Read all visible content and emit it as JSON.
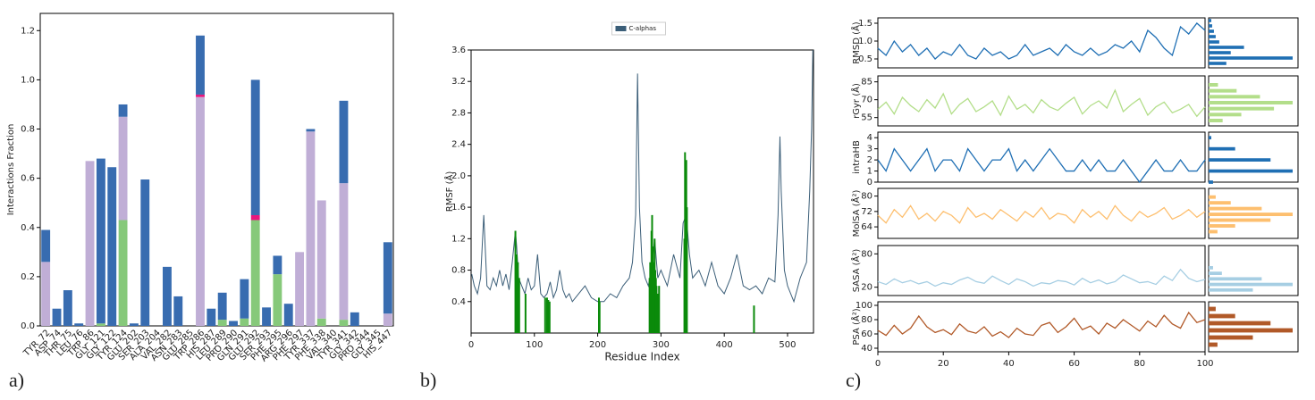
{
  "panel_labels": [
    "a)",
    "b)",
    "c)"
  ],
  "chart_data": [
    {
      "type": "bar",
      "y_label": "Interactions Fraction",
      "categories": [
        "TYR_72",
        "ASP_74",
        "THR_75",
        "LEU_76",
        "TRP_86",
        "GLY_121",
        "GLY_122",
        "TYR_124",
        "GLU_202",
        "SER_203",
        "ALA_204",
        "VAL_282",
        "ASN_283",
        "GLU_285",
        "TRP_286",
        "HIS_287",
        "LEU_289",
        "PRO_290",
        "GLN_291",
        "GLU_292",
        "SER_293",
        "PHE_295",
        "ARG_296",
        "PHE_297",
        "TYR_337",
        "PHE_338",
        "VAL_340",
        "TYR_341",
        "GLY_342",
        "PRO_344",
        "GLY_345",
        "HIS_447"
      ],
      "series": [
        {
          "color": "#86c97a",
          "values": [
            0,
            0,
            0,
            0,
            0,
            0.01,
            0,
            0.43,
            0,
            0,
            0,
            0,
            0,
            0,
            0,
            0,
            0.025,
            0,
            0.03,
            0.43,
            0,
            0.21,
            0,
            0,
            0,
            0.03,
            0,
            0.025,
            0,
            0,
            0,
            0
          ]
        },
        {
          "color": "#c0aed6",
          "values": [
            0.26,
            0,
            0,
            0,
            0.67,
            0,
            0,
            0.42,
            0,
            0,
            0,
            0,
            0,
            0,
            0.93,
            0,
            0,
            0,
            0,
            0,
            0,
            0,
            0,
            0.3,
            0.79,
            0.48,
            0,
            0.555,
            0,
            0,
            0,
            0.05
          ]
        },
        {
          "color": "#e8177d",
          "values": [
            0,
            0,
            0,
            0,
            0,
            0,
            0,
            0,
            0,
            0,
            0,
            0,
            0,
            0,
            0.01,
            0,
            0,
            0,
            0,
            0.02,
            0,
            0,
            0,
            0,
            0,
            0,
            0,
            0,
            0,
            0,
            0,
            0
          ]
        },
        {
          "color": "#386cb0",
          "values": [
            0.13,
            0.07,
            0.145,
            0.01,
            0,
            0.67,
            0.645,
            0.05,
            0.01,
            0.595,
            0,
            0.24,
            0.12,
            0,
            0.24,
            0.07,
            0.11,
            0.02,
            0.16,
            0.55,
            0.075,
            0.075,
            0.09,
            0,
            0.01,
            0,
            0,
            0.335,
            0.055,
            0,
            0,
            0.29
          ]
        }
      ],
      "ylim": [
        0,
        1.27
      ],
      "yticks": [
        {
          "value": 0,
          "label": "0.0"
        },
        0.2,
        0.4,
        0.6,
        0.8,
        {
          "value": 1,
          "label": "1.0"
        },
        1.2
      ]
    },
    {
      "type": "line",
      "x_label": "Residue Index",
      "y_label": "RMSF (Å)",
      "series": [
        {
          "name": "C-alphas",
          "color": "#3b5e78",
          "x": [
            1,
            5,
            10,
            15,
            20,
            25,
            30,
            35,
            40,
            45,
            50,
            55,
            60,
            65,
            70,
            72,
            75,
            80,
            85,
            90,
            95,
            100,
            105,
            110,
            115,
            120,
            125,
            130,
            135,
            140,
            145,
            150,
            155,
            160,
            170,
            180,
            190,
            200,
            210,
            220,
            230,
            240,
            250,
            255,
            260,
            263,
            266,
            270,
            275,
            280,
            285,
            290,
            295,
            300,
            310,
            320,
            330,
            335,
            340,
            345,
            350,
            360,
            370,
            380,
            390,
            400,
            410,
            420,
            430,
            440,
            450,
            460,
            470,
            480,
            485,
            488,
            490,
            495,
            500,
            510,
            520,
            530,
            535,
            538,
            540
          ],
          "values": [
            0.75,
            0.6,
            0.5,
            0.7,
            1.5,
            0.6,
            0.55,
            0.7,
            0.6,
            0.8,
            0.6,
            0.75,
            0.55,
            0.9,
            1.3,
            1.1,
            0.7,
            0.6,
            0.5,
            0.7,
            0.55,
            0.6,
            1.0,
            0.5,
            0.45,
            0.5,
            0.65,
            0.45,
            0.55,
            0.8,
            0.55,
            0.45,
            0.5,
            0.4,
            0.5,
            0.6,
            0.45,
            0.4,
            0.4,
            0.5,
            0.45,
            0.6,
            0.7,
            0.9,
            1.5,
            3.3,
            1.6,
            0.9,
            0.7,
            0.6,
            0.8,
            1.2,
            0.7,
            0.8,
            0.6,
            1.0,
            0.7,
            1.4,
            1.5,
            1.0,
            0.7,
            0.8,
            0.6,
            0.9,
            0.6,
            0.5,
            0.7,
            1.0,
            0.6,
            0.55,
            0.6,
            0.5,
            0.7,
            0.65,
            1.5,
            2.5,
            1.8,
            0.8,
            0.6,
            0.4,
            0.7,
            0.9,
            1.8,
            2.6,
            3.6
          ]
        },
        {
          "type": "bar",
          "color": "#0a8a0a",
          "x": [
            70,
            72,
            74,
            76,
            86,
            117,
            120,
            122,
            124,
            202,
            203,
            282,
            283,
            285,
            286,
            287,
            289,
            290,
            291,
            292,
            293,
            295,
            297,
            337,
            338,
            340,
            341,
            447
          ],
          "values": [
            1.3,
            1.0,
            0.9,
            0.7,
            0.5,
            0.45,
            0.45,
            0.42,
            0.4,
            0.45,
            0.4,
            0.7,
            0.9,
            1.3,
            1.5,
            1.1,
            0.9,
            1.2,
            0.8,
            0.7,
            0.6,
            0.5,
            0.6,
            1.2,
            2.3,
            2.2,
            1.6,
            0.35
          ]
        }
      ],
      "xlim": [
        0,
        541
      ],
      "xticks": [
        0,
        100,
        200,
        300,
        400,
        500
      ],
      "ylim": [
        0,
        3.6
      ],
      "yticks": [
        0.4,
        0.8,
        1.2,
        1.6,
        {
          "value": 2,
          "label": "2.0"
        },
        2.4,
        2.8,
        3.2,
        3.6
      ],
      "legend": "top-center"
    },
    {
      "type": "line",
      "y_label": "RMSD (Å)",
      "color": "#1f6fb4",
      "x": [
        0,
        2.5,
        5,
        7.5,
        10,
        12.5,
        15,
        17.5,
        20,
        22.5,
        25,
        27.5,
        30,
        32.5,
        35,
        37.5,
        40,
        42.5,
        45,
        47.5,
        50,
        52.5,
        55,
        57.5,
        60,
        62.5,
        65,
        67.5,
        70,
        72.5,
        75,
        77.5,
        80,
        82.5,
        85,
        87.5,
        90,
        92.5,
        95,
        97.5,
        100
      ],
      "values": [
        0.8,
        0.6,
        1.0,
        0.7,
        0.9,
        0.6,
        0.8,
        0.5,
        0.7,
        0.6,
        0.9,
        0.6,
        0.5,
        0.8,
        0.6,
        0.7,
        0.5,
        0.6,
        0.9,
        0.6,
        0.7,
        0.8,
        0.6,
        0.9,
        0.7,
        0.6,
        0.8,
        0.6,
        0.7,
        0.9,
        0.8,
        1.0,
        0.7,
        1.3,
        1.1,
        0.8,
        0.6,
        1.4,
        1.2,
        1.5,
        1.3
      ],
      "xlim": [
        0,
        100
      ],
      "ylim": [
        0.25,
        1.65
      ],
      "yticks": [
        0.5,
        {
          "value": 1,
          "label": "1.0"
        },
        1.5
      ],
      "hist": {
        "bins": [
          0.3,
          0.45,
          0.6,
          0.75,
          0.9,
          1.05,
          1.2,
          1.35,
          1.5,
          1.65
        ],
        "counts": [
          20,
          95,
          25,
          40,
          12,
          8,
          6,
          4,
          3
        ]
      }
    },
    {
      "type": "line",
      "y_label": "rGyr (Å)",
      "color": "#b3de8a",
      "x": [
        0,
        2.5,
        5,
        7.5,
        10,
        12.5,
        15,
        17.5,
        20,
        22.5,
        25,
        27.5,
        30,
        32.5,
        35,
        37.5,
        40,
        42.5,
        45,
        47.5,
        50,
        52.5,
        55,
        57.5,
        60,
        62.5,
        65,
        67.5,
        70,
        72.5,
        75,
        77.5,
        80,
        82.5,
        85,
        87.5,
        90,
        92.5,
        95,
        97.5,
        100
      ],
      "values": [
        62,
        68,
        58,
        72,
        65,
        60,
        70,
        63,
        75,
        58,
        66,
        71,
        60,
        64,
        69,
        57,
        73,
        62,
        66,
        59,
        70,
        64,
        61,
        67,
        72,
        58,
        65,
        69,
        63,
        78,
        60,
        66,
        71,
        57,
        64,
        68,
        59,
        62,
        66,
        56,
        64
      ],
      "xlim": [
        0,
        100
      ],
      "ylim": [
        48,
        90
      ],
      "yticks": [
        55,
        70,
        85
      ],
      "hist": {
        "bins": [
          50,
          55,
          60,
          65,
          70,
          75,
          80,
          85
        ],
        "counts": [
          15,
          35,
          70,
          90,
          55,
          30,
          10
        ]
      }
    },
    {
      "type": "line",
      "y_label": "intraHB",
      "color": "#1f6fb4",
      "x": [
        0,
        2.5,
        5,
        7.5,
        10,
        12.5,
        15,
        17.5,
        20,
        22.5,
        25,
        27.5,
        30,
        32.5,
        35,
        37.5,
        40,
        42.5,
        45,
        47.5,
        50,
        52.5,
        55,
        57.5,
        60,
        62.5,
        65,
        67.5,
        70,
        72.5,
        75,
        77.5,
        80,
        82.5,
        85,
        87.5,
        90,
        92.5,
        95,
        97.5,
        100
      ],
      "values": [
        2,
        1,
        3,
        2,
        1,
        2,
        3,
        1,
        2,
        2,
        1,
        3,
        2,
        1,
        2,
        2,
        3,
        1,
        2,
        1,
        2,
        3,
        2,
        1,
        1,
        2,
        1,
        2,
        1,
        1,
        2,
        1,
        0,
        1,
        2,
        1,
        1,
        2,
        1,
        1,
        2
      ],
      "xlim": [
        0,
        100
      ],
      "ylim": [
        0,
        4.5
      ],
      "yticks": [
        0,
        1,
        2,
        3,
        4
      ],
      "hist": {
        "bins": [
          -0.25,
          0.25,
          0.75,
          1.25,
          1.75,
          2.25,
          2.75,
          3.25,
          3.75,
          4.25
        ],
        "counts": [
          5,
          0,
          95,
          0,
          70,
          0,
          30,
          0,
          3
        ]
      }
    },
    {
      "type": "line",
      "y_label": "MolSA (Å²)",
      "color": "#fdbf6f",
      "x": [
        0,
        2.5,
        5,
        7.5,
        10,
        12.5,
        15,
        17.5,
        20,
        22.5,
        25,
        27.5,
        30,
        32.5,
        35,
        37.5,
        40,
        42.5,
        45,
        47.5,
        50,
        52.5,
        55,
        57.5,
        60,
        62.5,
        65,
        67.5,
        70,
        72.5,
        75,
        77.5,
        80,
        82.5,
        85,
        87.5,
        90,
        92.5,
        95,
        97.5,
        100
      ],
      "values": [
        70,
        66,
        73,
        69,
        75,
        68,
        71,
        67,
        72,
        70,
        66,
        74,
        69,
        71,
        68,
        73,
        70,
        67,
        72,
        69,
        74,
        68,
        71,
        70,
        66,
        73,
        69,
        72,
        68,
        75,
        70,
        67,
        72,
        69,
        71,
        74,
        68,
        70,
        73,
        69,
        72
      ],
      "xlim": [
        0,
        100
      ],
      "ylim": [
        58,
        84
      ],
      "yticks": [
        64,
        72,
        80
      ],
      "hist": {
        "bins": [
          60,
          63,
          66,
          69,
          72,
          75,
          78,
          81
        ],
        "counts": [
          10,
          30,
          70,
          95,
          60,
          25,
          8
        ]
      }
    },
    {
      "type": "line",
      "y_label": "SASA (Å²)",
      "color": "#a6cee3",
      "x": [
        0,
        2.5,
        5,
        7.5,
        10,
        12.5,
        15,
        17.5,
        20,
        22.5,
        25,
        27.5,
        30,
        32.5,
        35,
        37.5,
        40,
        42.5,
        45,
        47.5,
        50,
        52.5,
        55,
        57.5,
        60,
        62.5,
        65,
        67.5,
        70,
        72.5,
        75,
        77.5,
        80,
        82.5,
        85,
        87.5,
        90,
        92.5,
        95,
        97.5,
        100
      ],
      "values": [
        30,
        25,
        35,
        28,
        32,
        26,
        30,
        22,
        28,
        25,
        33,
        38,
        30,
        27,
        40,
        32,
        25,
        35,
        30,
        22,
        28,
        26,
        32,
        30,
        24,
        36,
        28,
        33,
        26,
        30,
        42,
        35,
        28,
        30,
        25,
        40,
        32,
        52,
        36,
        30,
        34
      ],
      "xlim": [
        0,
        100
      ],
      "ylim": [
        5,
        95
      ],
      "yticks": [
        20,
        80
      ],
      "hist": {
        "bins": [
          10,
          20,
          30,
          40,
          50,
          60
        ],
        "counts": [
          50,
          95,
          60,
          15,
          5
        ]
      }
    },
    {
      "type": "line",
      "y_label": "PSA (Å²)",
      "color": "#b15928",
      "x": [
        0,
        2.5,
        5,
        7.5,
        10,
        12.5,
        15,
        17.5,
        20,
        22.5,
        25,
        27.5,
        30,
        32.5,
        35,
        37.5,
        40,
        42.5,
        45,
        47.5,
        50,
        52.5,
        55,
        57.5,
        60,
        62.5,
        65,
        67.5,
        70,
        72.5,
        75,
        77.5,
        80,
        82.5,
        85,
        87.5,
        90,
        92.5,
        95,
        97.5,
        100
      ],
      "values": [
        65,
        58,
        72,
        60,
        68,
        85,
        70,
        62,
        66,
        59,
        74,
        64,
        61,
        70,
        57,
        63,
        55,
        68,
        60,
        58,
        72,
        76,
        62,
        70,
        82,
        66,
        71,
        60,
        75,
        68,
        80,
        72,
        64,
        78,
        70,
        86,
        74,
        68,
        90,
        76,
        80
      ],
      "xlim": [
        0,
        100
      ],
      "xticks": [
        0,
        20,
        40,
        60,
        80,
        100
      ],
      "ylim": [
        35,
        105
      ],
      "yticks": [
        40,
        60,
        80,
        100
      ],
      "hist": {
        "bins": [
          40,
          50,
          60,
          70,
          80,
          90,
          100
        ],
        "counts": [
          10,
          50,
          95,
          70,
          30,
          8
        ]
      }
    }
  ]
}
